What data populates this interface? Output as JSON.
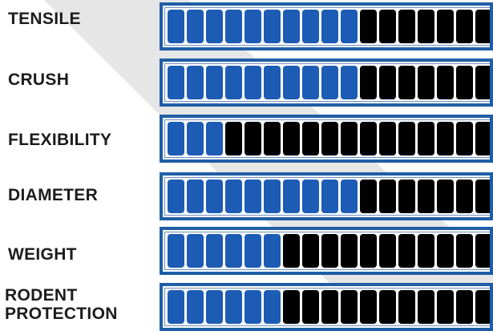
{
  "colors": {
    "frame": "#1f5ea6",
    "filled_segment": "#1d5cb4",
    "empty_segment": "#000000",
    "label_text": "#1c1c1c",
    "background_stripe": "#e6e6e6"
  },
  "segments_visible": 17,
  "ratings": [
    {
      "label": "TENSILE",
      "filled": 10
    },
    {
      "label": "CRUSH",
      "filled": 10
    },
    {
      "label": "FLEXIBILITY",
      "filled": 3
    },
    {
      "label": "DIAMETER",
      "filled": 10
    },
    {
      "label": "WEIGHT",
      "filled": 6
    },
    {
      "label": "RODENT\nPROTECTION",
      "filled": 6
    }
  ]
}
